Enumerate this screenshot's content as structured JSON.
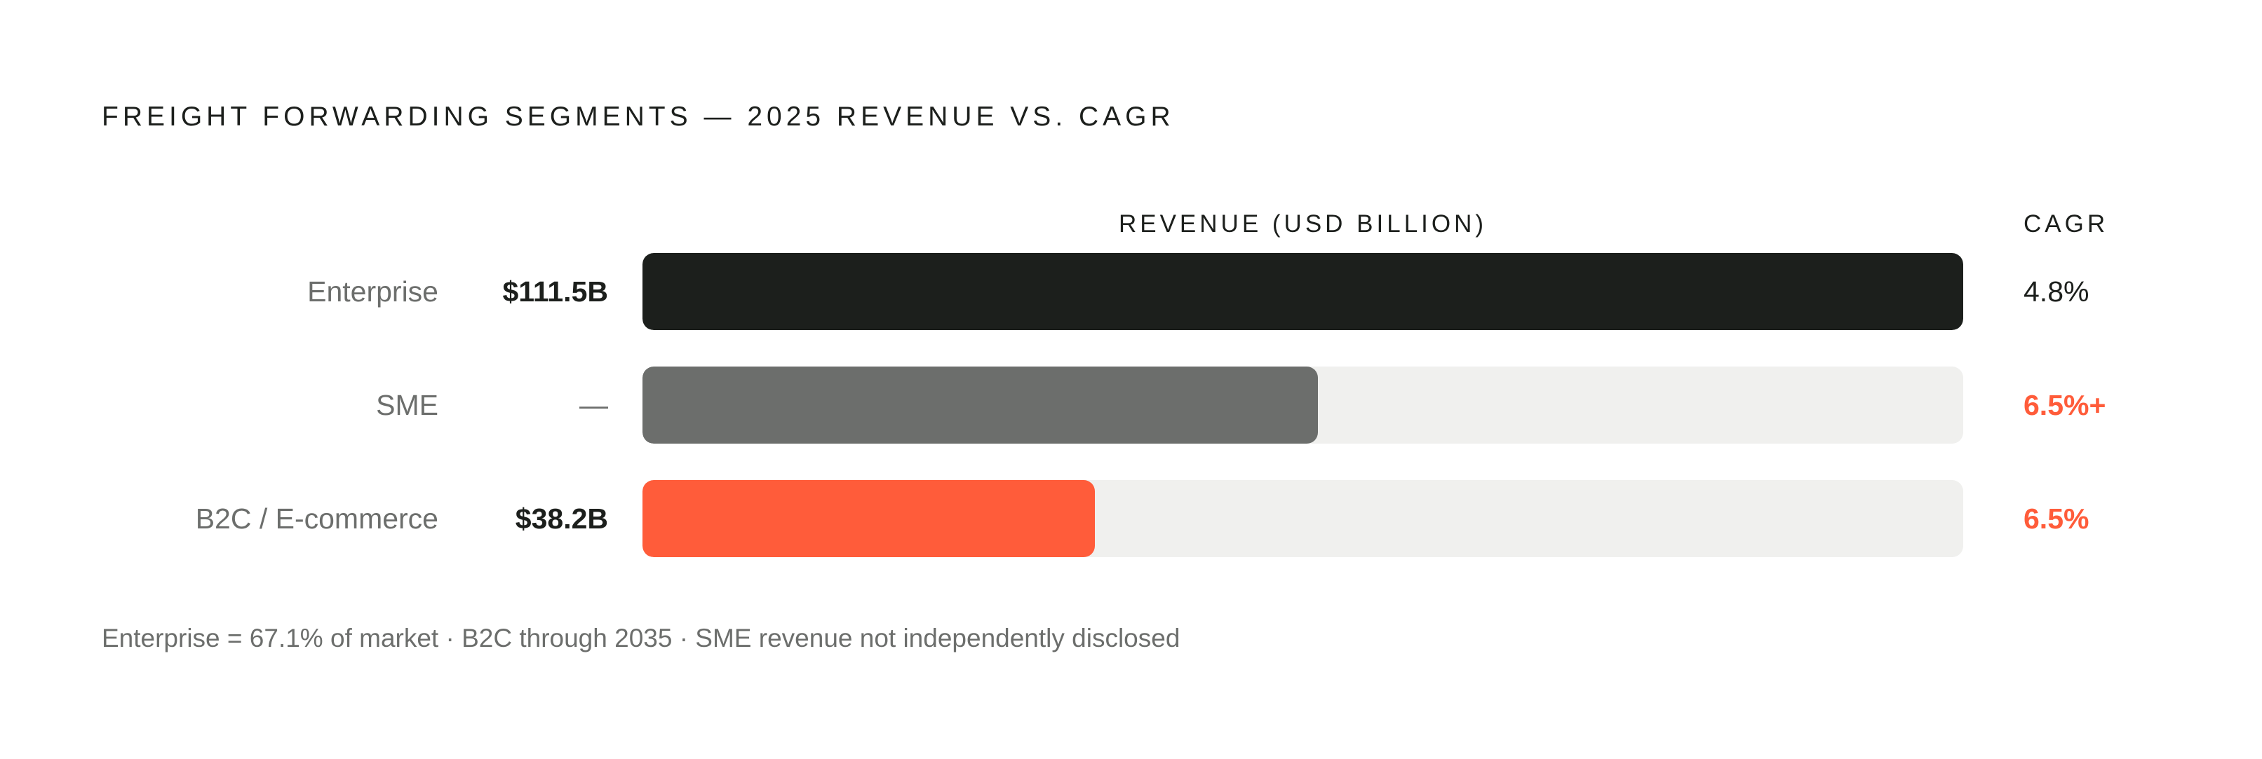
{
  "chart_data": {
    "type": "bar",
    "orientation": "horizontal",
    "title": "FREIGHT FORWARDING SEGMENTS — 2025 REVENUE VS. CAGR",
    "revenue_header": "REVENUE (USD BILLION)",
    "cagr_header": "CAGR",
    "xlim": [
      0,
      111.5
    ],
    "categories": [
      "Enterprise",
      "SME",
      "B2C / E-commerce"
    ],
    "rows": [
      {
        "category": "Enterprise",
        "value": 111.5,
        "value_label": "$111.5B",
        "cagr_label": "4.8%",
        "bar_color": "#1c1f1c",
        "cagr_color": "#1c1f1c"
      },
      {
        "category": "SME",
        "value": 57.0,
        "value_label": "—",
        "cagr_label": "6.5%+",
        "bar_color": "#6c6e6c",
        "cagr_color": "#ff5c3a"
      },
      {
        "category": "B2C / E-commerce",
        "value": 38.2,
        "value_label": "$38.2B",
        "cagr_label": "6.5%",
        "bar_color": "#ff5c3a",
        "cagr_color": "#ff5c3a"
      }
    ],
    "footnote": "Enterprise = 67.1% of market · B2C through 2035 · SME revenue not independently disclosed"
  }
}
